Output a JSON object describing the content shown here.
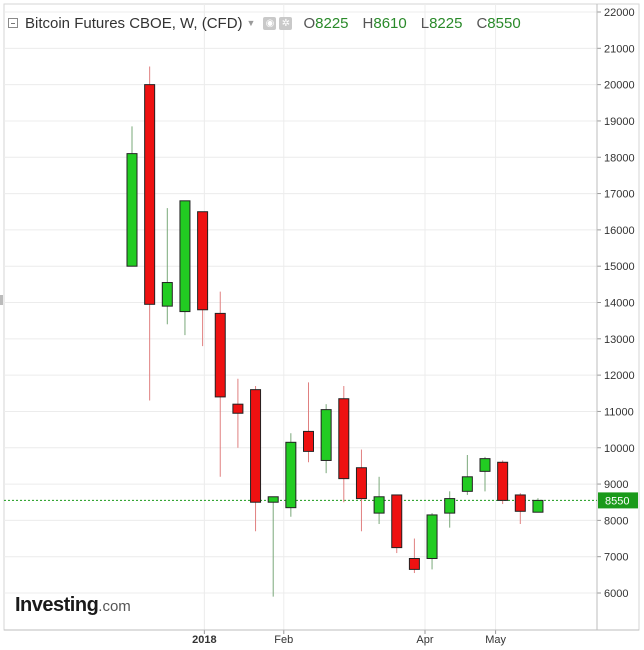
{
  "header": {
    "title": "Bitcoin Futures CBOE, W, (CFD)",
    "ohlc": {
      "open_label": "O",
      "open": "8225",
      "high_label": "H",
      "high": "8610",
      "low_label": "L",
      "low": "8225",
      "close_label": "C",
      "close": "8550"
    }
  },
  "brand": {
    "name": "Investing",
    "suffix": ".com"
  },
  "colors": {
    "up": "#22cc22",
    "down": "#ee1111",
    "last_price": "#1a9a1a",
    "grid": "#ececec"
  },
  "chart_data": {
    "type": "candlestick",
    "title": "Bitcoin Futures CBOE, W, (CFD)",
    "ylim": [
      5000,
      22200
    ],
    "y_ticks": [
      6000,
      7000,
      8000,
      9000,
      10000,
      11000,
      12000,
      13000,
      14000,
      15000,
      16000,
      17000,
      18000,
      19000,
      20000,
      21000,
      22000
    ],
    "x_tick_labels": [
      {
        "label": "2018",
        "index": 4.1
      },
      {
        "label": "Feb",
        "index": 8.6
      },
      {
        "label": "Apr",
        "index": 16.6
      },
      {
        "label": "May",
        "index": 20.6
      }
    ],
    "last_price": 8550,
    "candles": [
      {
        "open": 15000,
        "high": 18850,
        "low": 15000,
        "close": 18100
      },
      {
        "open": 20000,
        "high": 20500,
        "low": 11300,
        "close": 13950
      },
      {
        "open": 13900,
        "high": 16600,
        "low": 13400,
        "close": 14550
      },
      {
        "open": 13750,
        "high": 16800,
        "low": 13100,
        "close": 16800
      },
      {
        "open": 16500,
        "high": 16500,
        "low": 12800,
        "close": 13800
      },
      {
        "open": 13700,
        "high": 14300,
        "low": 9200,
        "close": 11400
      },
      {
        "open": 11200,
        "high": 11900,
        "low": 10000,
        "close": 10950
      },
      {
        "open": 11600,
        "high": 11700,
        "low": 7700,
        "close": 8500
      },
      {
        "open": 8500,
        "high": 8600,
        "low": 5900,
        "close": 8650
      },
      {
        "open": 8350,
        "high": 10400,
        "low": 8100,
        "close": 10150
      },
      {
        "open": 10450,
        "high": 11800,
        "low": 9600,
        "close": 9900
      },
      {
        "open": 9650,
        "high": 11200,
        "low": 9300,
        "close": 11050
      },
      {
        "open": 11350,
        "high": 11700,
        "low": 8500,
        "close": 9150
      },
      {
        "open": 9450,
        "high": 9950,
        "low": 7700,
        "close": 8600
      },
      {
        "open": 8200,
        "high": 9200,
        "low": 7900,
        "close": 8650
      },
      {
        "open": 8700,
        "high": 8700,
        "low": 7100,
        "close": 7250
      },
      {
        "open": 6950,
        "high": 7500,
        "low": 6550,
        "close": 6650
      },
      {
        "open": 6950,
        "high": 8200,
        "low": 6650,
        "close": 8150
      },
      {
        "open": 8200,
        "high": 8800,
        "low": 7800,
        "close": 8600
      },
      {
        "open": 8800,
        "high": 9800,
        "low": 8700,
        "close": 9200
      },
      {
        "open": 9350,
        "high": 9750,
        "low": 8800,
        "close": 9700
      },
      {
        "open": 9600,
        "high": 9650,
        "low": 8450,
        "close": 8550
      },
      {
        "open": 8700,
        "high": 8750,
        "low": 7900,
        "close": 8250
      },
      {
        "open": 8225,
        "high": 8610,
        "low": 8225,
        "close": 8550
      }
    ]
  }
}
